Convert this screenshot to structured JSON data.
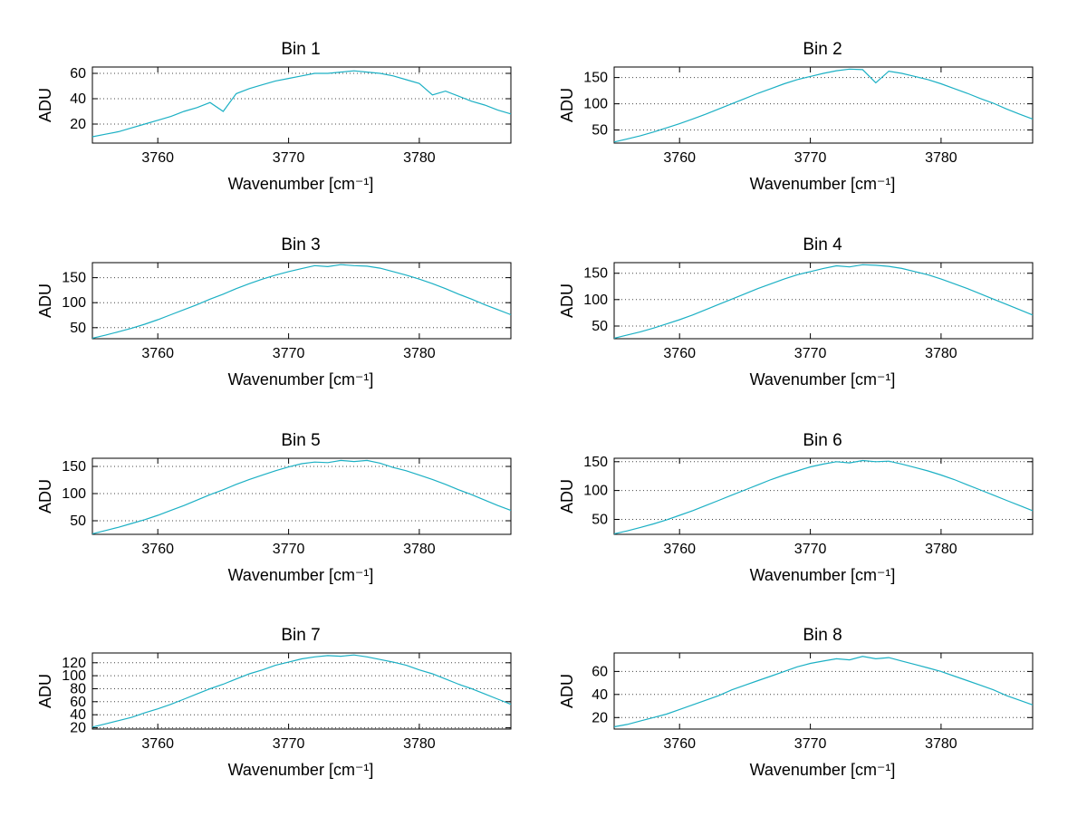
{
  "figure": {
    "background": "#ffffff",
    "grid_style": "horizontal-dotted",
    "axis_color": "#000000"
  },
  "chart_data": [
    {
      "type": "line",
      "title": "Bin 1",
      "xlabel": "Wavenumber [cm⁻¹]",
      "ylabel": "ADU",
      "line_color": "#1cb0c4",
      "x_start": 3755,
      "x_step": 1,
      "xlim": [
        3755,
        3787
      ],
      "ylim": [
        5,
        65
      ],
      "xticks": [
        3760,
        3770,
        3780
      ],
      "yticks": [
        20,
        40,
        60
      ],
      "values": [
        10,
        12,
        14,
        17,
        20,
        23,
        26,
        30,
        33,
        37,
        30,
        44,
        48,
        51,
        54,
        56,
        58,
        60,
        60,
        61,
        62,
        61,
        60,
        58,
        55,
        52,
        43,
        46,
        42,
        38,
        35,
        31,
        28
      ]
    },
    {
      "type": "line",
      "title": "Bin 2",
      "xlabel": "Wavenumber [cm⁻¹]",
      "ylabel": "ADU",
      "line_color": "#1cb0c4",
      "x_start": 3755,
      "x_step": 1,
      "xlim": [
        3755,
        3787
      ],
      "ylim": [
        25,
        170
      ],
      "xticks": [
        3760,
        3770,
        3780
      ],
      "yticks": [
        50,
        100,
        150
      ],
      "values": [
        27,
        33,
        39,
        46,
        54,
        62,
        71,
        80,
        90,
        100,
        110,
        120,
        129,
        138,
        146,
        152,
        158,
        163,
        166,
        165,
        140,
        162,
        158,
        152,
        146,
        138,
        129,
        120,
        110,
        101,
        90,
        80,
        71
      ]
    },
    {
      "type": "line",
      "title": "Bin 3",
      "xlabel": "Wavenumber [cm⁻¹]",
      "ylabel": "ADU",
      "line_color": "#1cb0c4",
      "x_start": 3755,
      "x_step": 1,
      "xlim": [
        3755,
        3787
      ],
      "ylim": [
        28,
        180
      ],
      "xticks": [
        3760,
        3770,
        3780
      ],
      "yticks": [
        50,
        100,
        150
      ],
      "values": [
        29,
        35,
        42,
        49,
        57,
        66,
        76,
        86,
        96,
        107,
        117,
        128,
        138,
        147,
        155,
        162,
        168,
        174,
        172,
        176,
        174,
        173,
        169,
        162,
        155,
        147,
        138,
        128,
        117,
        107,
        96,
        86,
        76
      ]
    },
    {
      "type": "line",
      "title": "Bin 4",
      "xlabel": "Wavenumber [cm⁻¹]",
      "ylabel": "ADU",
      "line_color": "#1cb0c4",
      "x_start": 3755,
      "x_step": 1,
      "xlim": [
        3755,
        3787
      ],
      "ylim": [
        26,
        170
      ],
      "xticks": [
        3760,
        3770,
        3780
      ],
      "yticks": [
        50,
        100,
        150
      ],
      "values": [
        27,
        33,
        39,
        46,
        54,
        62,
        71,
        81,
        91,
        101,
        111,
        121,
        130,
        139,
        147,
        153,
        159,
        164,
        162,
        166,
        165,
        163,
        159,
        153,
        147,
        139,
        130,
        121,
        111,
        101,
        91,
        81,
        71
      ]
    },
    {
      "type": "line",
      "title": "Bin 5",
      "xlabel": "Wavenumber [cm⁻¹]",
      "ylabel": "ADU",
      "line_color": "#1cb0c4",
      "x_start": 3755,
      "x_step": 1,
      "xlim": [
        3755,
        3787
      ],
      "ylim": [
        25,
        165
      ],
      "xticks": [
        3760,
        3770,
        3780
      ],
      "yticks": [
        50,
        100,
        150
      ],
      "values": [
        26,
        32,
        38,
        45,
        52,
        60,
        69,
        78,
        88,
        98,
        107,
        117,
        126,
        134,
        142,
        149,
        155,
        158,
        157,
        161,
        159,
        161,
        156,
        148,
        142,
        134,
        126,
        117,
        107,
        98,
        88,
        78,
        69
      ]
    },
    {
      "type": "line",
      "title": "Bin 6",
      "xlabel": "Wavenumber [cm⁻¹]",
      "ylabel": "ADU",
      "line_color": "#1cb0c4",
      "x_start": 3755,
      "x_step": 1,
      "xlim": [
        3755,
        3787
      ],
      "ylim": [
        24,
        156
      ],
      "xticks": [
        3760,
        3770,
        3780
      ],
      "yticks": [
        50,
        100,
        150
      ],
      "values": [
        25,
        30,
        36,
        42,
        49,
        57,
        65,
        74,
        83,
        92,
        101,
        110,
        119,
        127,
        134,
        141,
        146,
        150,
        148,
        152,
        150,
        151,
        146,
        140,
        134,
        127,
        119,
        110,
        101,
        92,
        83,
        74,
        65
      ]
    },
    {
      "type": "line",
      "title": "Bin 7",
      "xlabel": "Wavenumber [cm⁻¹]",
      "ylabel": "ADU",
      "line_color": "#1cb0c4",
      "x_start": 3755,
      "x_step": 1,
      "xlim": [
        3755,
        3787
      ],
      "ylim": [
        18,
        135
      ],
      "xticks": [
        3760,
        3770,
        3780
      ],
      "yticks": [
        20,
        40,
        60,
        80,
        100,
        120
      ],
      "values": [
        21,
        26,
        31,
        36,
        43,
        49,
        56,
        64,
        72,
        80,
        87,
        95,
        103,
        109,
        116,
        121,
        126,
        129,
        131,
        130,
        132,
        129,
        125,
        121,
        116,
        109,
        103,
        95,
        87,
        80,
        72,
        64,
        56
      ]
    },
    {
      "type": "line",
      "title": "Bin 8",
      "xlabel": "Wavenumber [cm⁻¹]",
      "ylabel": "ADU",
      "line_color": "#1cb0c4",
      "x_start": 3755,
      "x_step": 1,
      "xlim": [
        3755,
        3787
      ],
      "ylim": [
        10,
        76
      ],
      "xticks": [
        3760,
        3770,
        3780
      ],
      "yticks": [
        20,
        40,
        60
      ],
      "values": [
        12,
        14,
        17,
        20,
        23,
        27,
        31,
        35,
        39,
        44,
        48,
        52,
        56,
        60,
        64,
        67,
        69,
        71,
        70,
        73,
        71,
        72,
        69,
        66,
        63,
        60,
        56,
        52,
        48,
        44,
        39,
        35,
        31
      ]
    }
  ]
}
